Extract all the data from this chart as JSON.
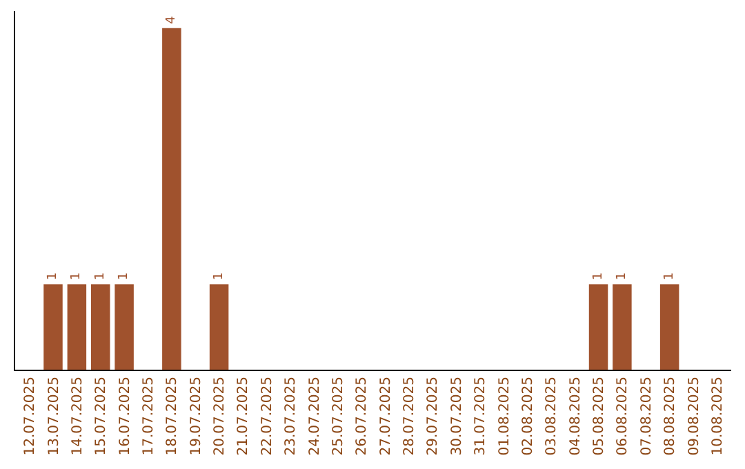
{
  "chart_data": {
    "type": "bar",
    "categories": [
      "12.07.2025",
      "13.07.2025",
      "14.07.2025",
      "15.07.2025",
      "16.07.2025",
      "17.07.2025",
      "18.07.2025",
      "19.07.2025",
      "20.07.2025",
      "21.07.2025",
      "22.07.2025",
      "23.07.2025",
      "24.07.2025",
      "25.07.2025",
      "26.07.2025",
      "27.07.2025",
      "28.07.2025",
      "29.07.2025",
      "30.07.2025",
      "31.07.2025",
      "01.08.2025",
      "02.08.2025",
      "03.08.2025",
      "04.08.2025",
      "05.08.2025",
      "06.08.2025",
      "07.08.2025",
      "08.08.2025",
      "09.08.2025",
      "10.08.2025"
    ],
    "values": [
      0,
      1,
      1,
      1,
      1,
      0,
      4,
      0,
      1,
      0,
      0,
      0,
      0,
      0,
      0,
      0,
      0,
      0,
      0,
      0,
      0,
      0,
      0,
      0,
      1,
      1,
      0,
      1,
      0,
      0
    ],
    "value_labels": [
      null,
      "1",
      "1",
      "1",
      "1",
      null,
      "4",
      null,
      "1",
      null,
      null,
      null,
      null,
      null,
      null,
      null,
      null,
      null,
      null,
      null,
      null,
      null,
      null,
      null,
      "1",
      "1",
      null,
      "1",
      null,
      null
    ],
    "color": "#a0522d",
    "ylim": [
      0,
      4.2
    ],
    "tick_labels": "x",
    "grid": false,
    "legend": false
  }
}
